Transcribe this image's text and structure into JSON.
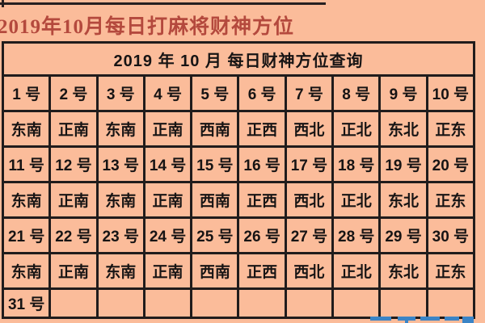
{
  "page_title": "2019年10月每日打麻将财神方位",
  "table": {
    "header": "2019 年 10 月 每日财神方位查询",
    "rows": [
      {
        "type": "dates",
        "cells": [
          "1 号",
          "2 号",
          "3 号",
          "4 号",
          "5 号",
          "6 号",
          "7 号",
          "8 号",
          "9 号",
          "10 号"
        ]
      },
      {
        "type": "directions",
        "cells": [
          "东南",
          "正南",
          "东南",
          "正南",
          "西南",
          "正西",
          "西北",
          "正北",
          "东北",
          "正东"
        ]
      },
      {
        "type": "dates",
        "cells": [
          "11 号",
          "12 号",
          "13 号",
          "14 号",
          "15 号",
          "16 号",
          "17 号",
          "18 号",
          "19 号",
          "20 号"
        ]
      },
      {
        "type": "directions",
        "cells": [
          "东南",
          "正南",
          "东南",
          "正南",
          "西南",
          "正西",
          "西北",
          "正北",
          "东北",
          "正东"
        ]
      },
      {
        "type": "dates",
        "cells": [
          "21 号",
          "22 号",
          "23 号",
          "24 号",
          "25 号",
          "26 号",
          "27 号",
          "28 号",
          "29 号",
          "30 号"
        ]
      },
      {
        "type": "directions",
        "cells": [
          "东南",
          "正南",
          "东南",
          "正南",
          "西南",
          "正西",
          "西北",
          "正北",
          "东北",
          "正东"
        ]
      },
      {
        "type": "dates",
        "cells": [
          "31 号",
          "",
          "",
          "",
          "",
          "",
          "",
          "",
          "",
          ""
        ]
      }
    ]
  },
  "colors": {
    "background": "#fbbc9a",
    "title_red": "#b4493d",
    "table_border": "#201c1c",
    "cell_text": "#171414",
    "watermark_blue": "#3a84c6"
  }
}
